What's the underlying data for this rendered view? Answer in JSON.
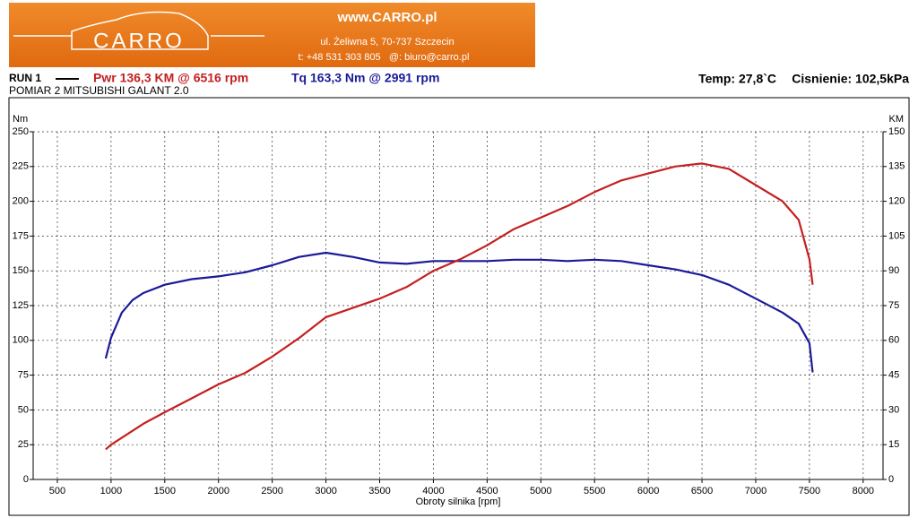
{
  "header": {
    "logo": "CARRO",
    "website": "www.CARRO.pl",
    "address": "ul. Żeliwna 5, 70-737 Szczecin",
    "contact": "t: +48 531 303 805   @: biuro@carro.pl"
  },
  "chart_data": {
    "type": "line",
    "run": "RUN 1",
    "subtitle": "POMIAR 2 MITSUBISHI GALANT 2.0",
    "temperature": "Temp: 27,8`C",
    "pressure": "Cisnienie: 102,5kPa",
    "x_label": "Obroty silnika [rpm]",
    "y_label": "Nm",
    "y2_label": "KM",
    "x": [
      950,
      1000,
      1100,
      1200,
      1300,
      1500,
      1750,
      2000,
      2250,
      2500,
      2750,
      3000,
      3250,
      3500,
      3750,
      4000,
      4250,
      4500,
      4750,
      5000,
      5250,
      5500,
      5750,
      6000,
      6250,
      6500,
      6750,
      7000,
      7250,
      7400,
      7500,
      7530
    ],
    "series": [
      {
        "name": "Tq 163,3 Nm @ 2991 rpm",
        "color": "#1a1a99",
        "axis": "y",
        "values": [
          87,
          102,
          120,
          129,
          134,
          140,
          144,
          146,
          149,
          154,
          160,
          163,
          160,
          156,
          155,
          157,
          157,
          157,
          158,
          158,
          157,
          158,
          157,
          154,
          151,
          147,
          140,
          130,
          120,
          112,
          98,
          77
        ]
      },
      {
        "name": "Pwr 136,3 KM @ 6516 rpm",
        "color": "#c42020",
        "axis": "y2",
        "values": [
          13,
          15,
          18,
          21,
          24,
          29,
          35,
          41,
          46,
          53,
          61,
          70,
          74,
          78,
          83,
          90,
          95,
          101,
          108,
          113,
          118,
          124,
          129,
          132,
          135,
          136.3,
          134,
          127,
          120,
          112,
          95,
          84
        ]
      }
    ],
    "xlim": [
      275,
      8185
    ],
    "xticks": [
      500,
      1000,
      1500,
      2000,
      2500,
      3000,
      3500,
      4000,
      4500,
      5000,
      5500,
      6000,
      6500,
      7000,
      7500,
      8000
    ],
    "ylim": [
      0,
      250
    ],
    "yticks": [
      0,
      25,
      50,
      75,
      100,
      125,
      150,
      175,
      200,
      225,
      250
    ],
    "y2lim": [
      0,
      150
    ],
    "y2ticks": [
      0,
      15,
      30,
      45,
      60,
      75,
      90,
      105,
      120,
      135,
      150
    ],
    "grid": true
  }
}
